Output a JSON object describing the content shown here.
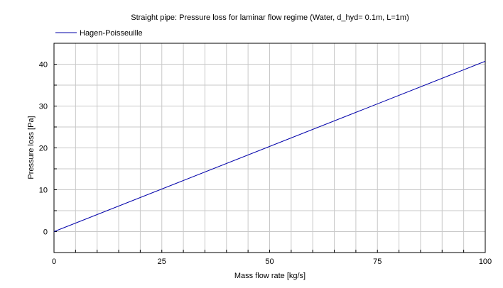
{
  "chart_data": {
    "type": "line",
    "title": "Straight pipe: Pressure loss for laminar flow regime (Water, d_hyd= 0.1m, L=1m)",
    "xlabel": "Mass flow rate [kg/s]",
    "ylabel": "Pressure loss [Pa]",
    "xlim": [
      0,
      100
    ],
    "ylim": [
      -5,
      45
    ],
    "xticks": [
      0,
      25,
      50,
      75,
      100
    ],
    "xtick_labels": [
      "0",
      "25",
      "50",
      "75",
      "100"
    ],
    "yticks": [
      0,
      10,
      20,
      30,
      40
    ],
    "ytick_labels": [
      "0",
      "10",
      "20",
      "30",
      "40"
    ],
    "grid": true,
    "legend_position": "top-left",
    "series": [
      {
        "name": "Hagen-Poisseuille",
        "color": "#0000aa",
        "x": [
          0,
          100
        ],
        "y": [
          0,
          40.7
        ]
      }
    ]
  }
}
